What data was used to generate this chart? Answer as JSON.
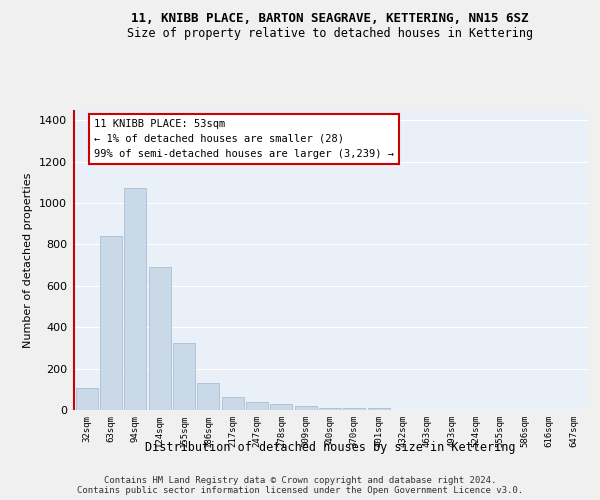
{
  "title": "11, KNIBB PLACE, BARTON SEAGRAVE, KETTERING, NN15 6SZ",
  "subtitle": "Size of property relative to detached houses in Kettering",
  "xlabel": "Distribution of detached houses by size in Kettering",
  "ylabel": "Number of detached properties",
  "categories": [
    "32sqm",
    "63sqm",
    "94sqm",
    "124sqm",
    "155sqm",
    "186sqm",
    "217sqm",
    "247sqm",
    "278sqm",
    "309sqm",
    "340sqm",
    "370sqm",
    "401sqm",
    "432sqm",
    "463sqm",
    "493sqm",
    "524sqm",
    "555sqm",
    "586sqm",
    "616sqm",
    "647sqm"
  ],
  "values": [
    105,
    840,
    1075,
    690,
    325,
    130,
    65,
    40,
    30,
    20,
    12,
    10,
    10,
    0,
    0,
    0,
    0,
    0,
    0,
    0,
    0
  ],
  "bar_color": "#c9d9e8",
  "bar_edgecolor": "#a0b8cc",
  "annotation_line1": "11 KNIBB PLACE: 53sqm",
  "annotation_line2": "← 1% of detached houses are smaller (28)",
  "annotation_line3": "99% of semi-detached houses are larger (3,239) →",
  "annotation_box_color": "#ffffff",
  "annotation_box_edgecolor": "#cc0000",
  "vline_color": "#cc0000",
  "ylim": [
    0,
    1450
  ],
  "yticks": [
    0,
    200,
    400,
    600,
    800,
    1000,
    1200,
    1400
  ],
  "bg_color": "#eaf0f8",
  "grid_color": "#ffffff",
  "footer_line1": "Contains HM Land Registry data © Crown copyright and database right 2024.",
  "footer_line2": "Contains public sector information licensed under the Open Government Licence v3.0."
}
